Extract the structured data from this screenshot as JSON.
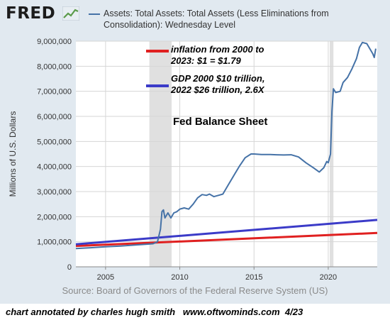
{
  "brand": {
    "logo_text": "FRED",
    "logo_icon": "line-graph-icon"
  },
  "header": {
    "title": "Assets: Total Assets: Total Assets (Less Eliminations from Consolidation): Wednesday Level"
  },
  "source": "Source: Board of Governors of the Federal Reserve System (US)",
  "footer": "chart annotated by charles hugh smith   www.oftwominds.com  4/23",
  "annotations": {
    "inflation": "inflation from 2000 to\n2023: $1 = $1.79",
    "gdp": "GDP 2000 $10 trillion,\n2022 $26 trillion, 2.6X",
    "fed": "Fed Balance Sheet"
  },
  "colors": {
    "series": "#4572a7",
    "inflation": "#e02020",
    "gdp": "#3b3bc8",
    "recession": "#e0e0e0"
  },
  "chart_data": {
    "type": "line",
    "title": "Assets: Total Assets: Total Assets (Less Eliminations from Consolidation): Wednesday Level",
    "ylabel": "Millions of U.S. Dollars",
    "xlabel": "",
    "xlim": [
      2003.0,
      2023.3
    ],
    "ylim": [
      0,
      9000000
    ],
    "x_ticks": [
      2005,
      2010,
      2015,
      2020
    ],
    "x_tick_labels": [
      "2005",
      "2010",
      "2015",
      "2020"
    ],
    "y_ticks": [
      0,
      1000000,
      2000000,
      3000000,
      4000000,
      5000000,
      6000000,
      7000000,
      8000000,
      9000000
    ],
    "y_tick_labels": [
      "0",
      "1,000,000",
      "2,000,000",
      "3,000,000",
      "4,000,000",
      "5,000,000",
      "6,000,000",
      "7,000,000",
      "8,000,000",
      "9,000,000"
    ],
    "grid": true,
    "recessions": [
      [
        2007.95,
        2009.45
      ],
      [
        2020.1,
        2020.35
      ]
    ],
    "series": [
      {
        "x": [
          2003.0,
          2004.0,
          2005.0,
          2006.0,
          2007.0,
          2007.7,
          2008.2,
          2008.5,
          2008.7,
          2008.8,
          2008.9,
          2009.0,
          2009.2,
          2009.4,
          2009.6,
          2009.8,
          2010.0,
          2010.3,
          2010.6,
          2010.9,
          2011.2,
          2011.5,
          2011.8,
          2012.0,
          2012.3,
          2012.6,
          2012.9,
          2013.3,
          2013.7,
          2014.0,
          2014.4,
          2014.8,
          2015.0,
          2015.5,
          2016.0,
          2016.5,
          2017.0,
          2017.5,
          2018.0,
          2018.5,
          2019.0,
          2019.4,
          2019.7,
          2019.9,
          2020.0,
          2020.15,
          2020.25,
          2020.35,
          2020.5,
          2020.8,
          2021.0,
          2021.3,
          2021.6,
          2021.9,
          2022.1,
          2022.3,
          2022.6,
          2022.9,
          2023.0,
          2023.1,
          2023.2
        ],
        "values": [
          730000,
          760000,
          800000,
          830000,
          870000,
          900000,
          920000,
          1000000,
          1500000,
          2200000,
          2270000,
          1950000,
          2150000,
          1950000,
          2150000,
          2200000,
          2300000,
          2350000,
          2300000,
          2500000,
          2750000,
          2880000,
          2850000,
          2900000,
          2800000,
          2850000,
          2900000,
          3300000,
          3700000,
          4000000,
          4350000,
          4500000,
          4500000,
          4480000,
          4480000,
          4470000,
          4460000,
          4470000,
          4380000,
          4150000,
          3950000,
          3780000,
          3950000,
          4200000,
          4150000,
          4500000,
          6200000,
          7100000,
          6950000,
          7000000,
          7350000,
          7550000,
          7900000,
          8300000,
          8750000,
          8950000,
          8900000,
          8600000,
          8500000,
          8350000,
          8700000
        ]
      }
    ],
    "overlays": [
      {
        "label": "inflation from 2000 to 2023: $1 = $1.79",
        "x": [
          2003.0,
          2023.3
        ],
        "values": [
          830000,
          1350000
        ]
      },
      {
        "label": "GDP 2000 $10 trillion, 2022 $26 trillion, 2.6X",
        "x": [
          2003.0,
          2023.3
        ],
        "values": [
          900000,
          1870000
        ]
      }
    ]
  }
}
